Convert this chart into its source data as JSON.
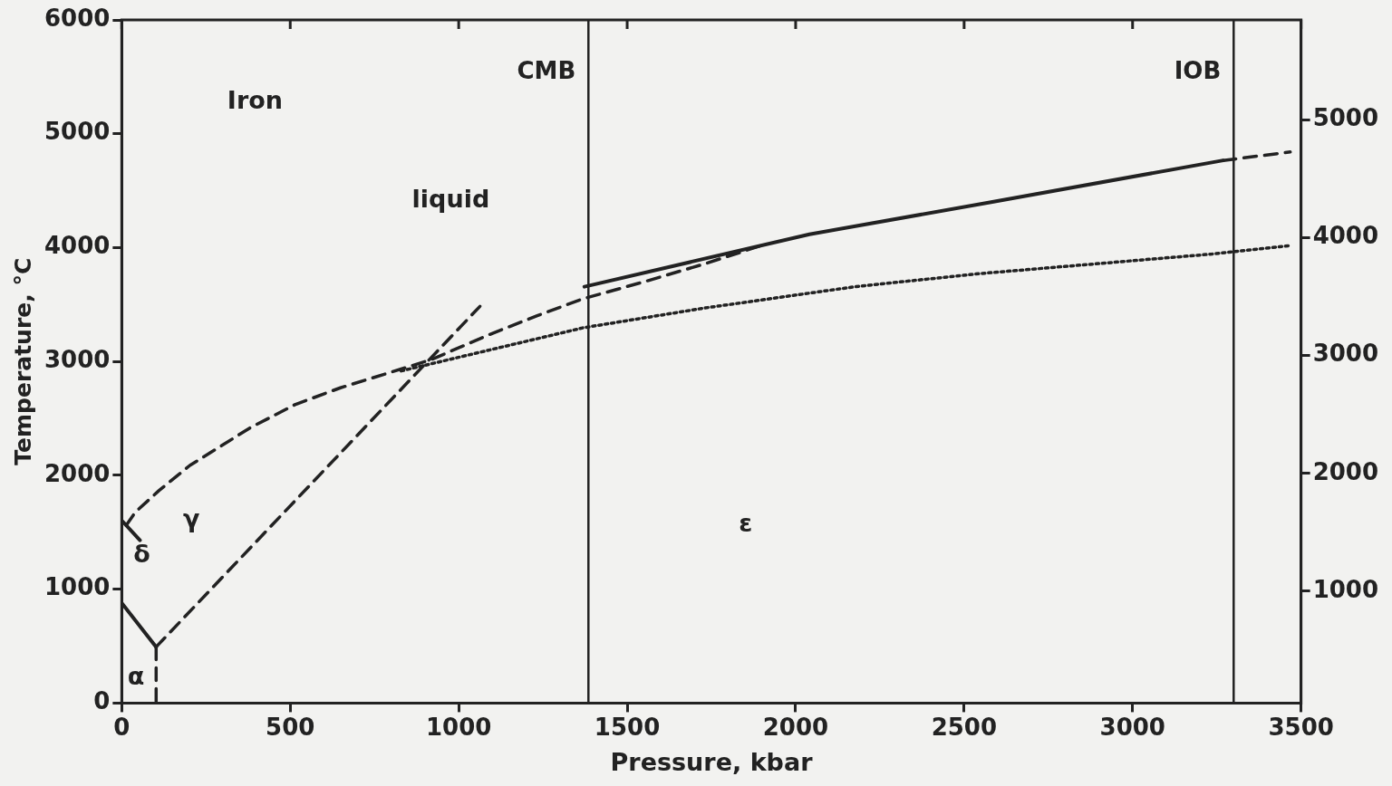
{
  "chart_data": {
    "type": "line",
    "xlabel": "Pressure, kbar",
    "ylabel": "Temperature, °C",
    "xlim": [
      0,
      3500
    ],
    "xticks": [
      0,
      500,
      1000,
      1500,
      2000,
      2500,
      3000,
      3500
    ],
    "ylim": [
      0,
      6000
    ],
    "yticks": [
      0,
      1000,
      2000,
      3000,
      4000,
      5000,
      6000
    ],
    "y2lim": [
      50,
      5850
    ],
    "y2ticks": [
      1000,
      2000,
      3000,
      4000,
      5000
    ],
    "grid": false,
    "legend": false,
    "marker": "none",
    "series": [
      {
        "color": "#222222",
        "line_style": "dashed",
        "x": [
          13,
          40,
          110,
          202,
          291,
          380,
          514,
          649,
          784,
          918,
          1099,
          1233,
          1368,
          1548,
          1726,
          1906
        ],
        "values": [
          1561,
          1676,
          1865,
          2087,
          2251,
          2416,
          2621,
          2769,
          2892,
          3016,
          3246,
          3402,
          3550,
          3698,
          3854,
          4026
        ]
      },
      {
        "color": "#222222",
        "line_style": "solid",
        "x": [
          1373,
          2041,
          2580,
          3269
        ],
        "values": [
          3657,
          4117,
          4400,
          4766
        ]
      },
      {
        "color": "#222222",
        "line_style": "dashed",
        "x": [
          3269,
          3468
        ],
        "values": [
          4766,
          4840
        ]
      },
      {
        "color": "#222222",
        "line_style": "dotted",
        "x": [
          829,
          1368,
          1726,
          2176,
          2547,
          3236,
          3468
        ],
        "values": [
          2917,
          3295,
          3468,
          3657,
          3772,
          3944,
          4018
        ]
      },
      {
        "color": "#222222",
        "line_style": "dashed",
        "x": [
          102,
          1063
        ],
        "values": [
          493,
          3484
        ]
      },
      {
        "color": "#222222",
        "line_style": "solid",
        "x": [
          0,
          102
        ],
        "values": [
          879,
          493
        ]
      },
      {
        "color": "#222222",
        "line_style": "dashed",
        "x": [
          102,
          102
        ],
        "values": [
          493,
          0
        ]
      },
      {
        "color": "#222222",
        "line_style": "solid",
        "x": [
          3,
          54
        ],
        "values": [
          1594,
          1430
        ]
      }
    ],
    "ref_lines": [
      {
        "axis": "x",
        "value": 1385,
        "label": "CMB"
      },
      {
        "axis": "x",
        "value": 3300,
        "label": "IOB"
      }
    ],
    "annotations": [
      "Iron",
      "liquid",
      "γ",
      "δ",
      "α",
      "ε"
    ]
  }
}
